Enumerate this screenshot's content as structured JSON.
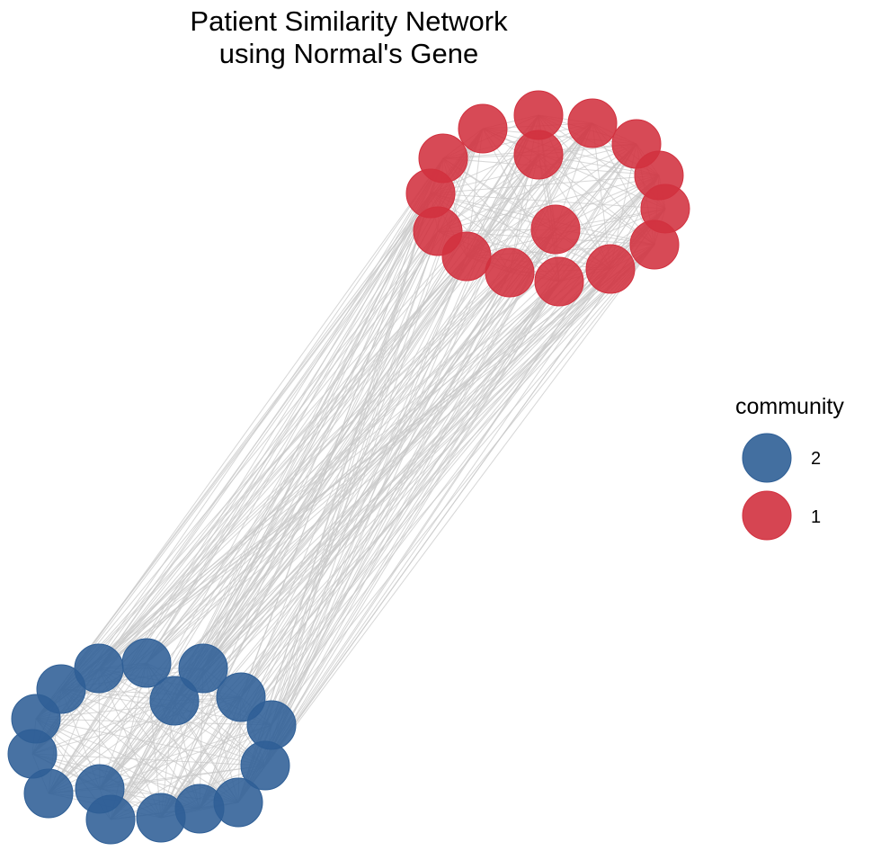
{
  "title": {
    "line1": "Patient Similarity Network",
    "line2": "using Normal's Gene"
  },
  "legend": {
    "title": "community",
    "items": [
      {
        "label": "2",
        "color": "#2f5f96"
      },
      {
        "label": "1",
        "color": "#d2313f"
      }
    ]
  },
  "colors": {
    "edge": "#c8c8c8",
    "community_1": "#d2313f",
    "community_2": "#2f5f96"
  },
  "network": {
    "communities": [
      {
        "id": "1",
        "node_count": 16
      },
      {
        "id": "2",
        "node_count": 17
      }
    ]
  }
}
